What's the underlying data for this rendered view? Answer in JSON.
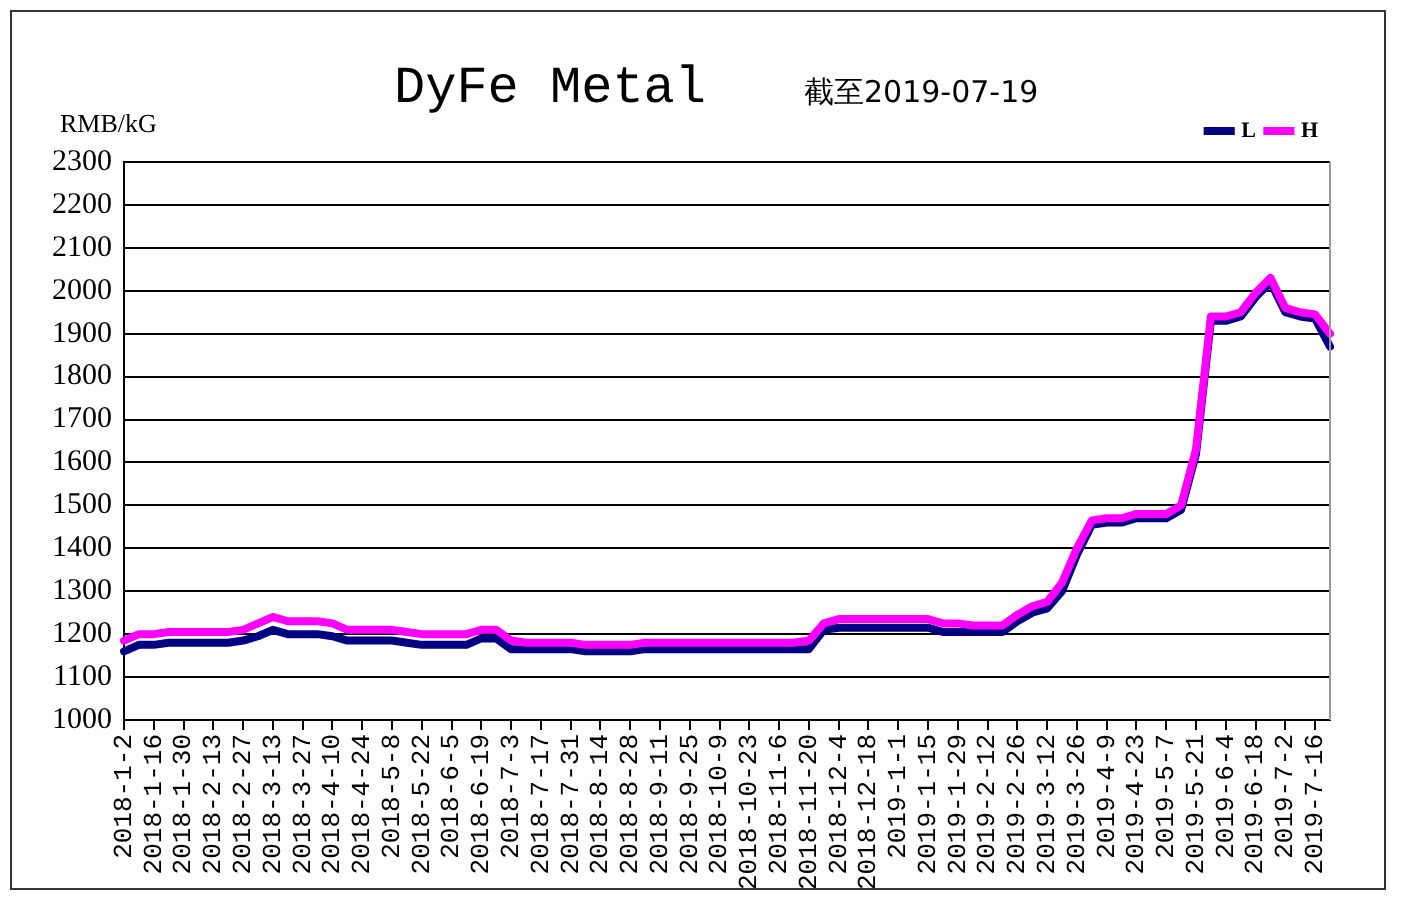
{
  "chart_data": {
    "type": "line",
    "title": "DyFe Metal",
    "subtitle": "截至2019-07-19",
    "ylabel": "RMB/kG",
    "categories": [
      "2018-1-2",
      null,
      "2018-1-16",
      null,
      "2018-1-30",
      null,
      "2018-2-13",
      null,
      "2018-2-27",
      null,
      "2018-3-13",
      null,
      "2018-3-27",
      null,
      "2018-4-10",
      null,
      "2018-4-24",
      null,
      "2018-5-8",
      null,
      "2018-5-22",
      null,
      "2018-6-5",
      null,
      "2018-6-19",
      null,
      "2018-7-3",
      null,
      "2018-7-17",
      null,
      "2018-7-31",
      null,
      "2018-8-14",
      null,
      "2018-8-28",
      null,
      "2018-9-11",
      null,
      "2018-9-25",
      null,
      "2018-10-9",
      null,
      "2018-10-23",
      null,
      "2018-11-6",
      null,
      "2018-11-20",
      null,
      "2018-12-4",
      null,
      "2018-12-18",
      null,
      "2019-1-1",
      null,
      "2019-1-15",
      null,
      "2019-1-29",
      null,
      "2019-2-12",
      null,
      "2019-2-26",
      null,
      "2019-3-12",
      null,
      "2019-3-26",
      null,
      "2019-4-9",
      null,
      "2019-4-23",
      null,
      "2019-5-7",
      null,
      "2019-5-21",
      null,
      "2019-6-4",
      null,
      "2019-6-18",
      null,
      "2019-7-2",
      null,
      "2019-7-16",
      null
    ],
    "series": [
      {
        "name": "L",
        "color": "#000080",
        "values": [
          1160,
          1175,
          1175,
          1180,
          1180,
          1180,
          1180,
          1180,
          1185,
          1195,
          1210,
          1200,
          1200,
          1200,
          1195,
          1185,
          1185,
          1185,
          1185,
          1180,
          1175,
          1175,
          1175,
          1175,
          1190,
          1190,
          1165,
          1165,
          1165,
          1165,
          1165,
          1160,
          1160,
          1160,
          1160,
          1165,
          1165,
          1165,
          1165,
          1165,
          1165,
          1165,
          1165,
          1165,
          1165,
          1165,
          1165,
          1210,
          1215,
          1215,
          1215,
          1215,
          1215,
          1215,
          1215,
          1205,
          1205,
          1205,
          1205,
          1205,
          1230,
          1250,
          1260,
          1300,
          1385,
          1455,
          1460,
          1460,
          1470,
          1470,
          1470,
          1490,
          1620,
          1930,
          1930,
          1940,
          1985,
          2020,
          1950,
          1940,
          1935,
          1870
        ]
      },
      {
        "name": "H",
        "color": "#ff00ff",
        "values": [
          1185,
          1200,
          1200,
          1205,
          1205,
          1205,
          1205,
          1205,
          1210,
          1225,
          1240,
          1230,
          1230,
          1230,
          1225,
          1210,
          1210,
          1210,
          1210,
          1205,
          1200,
          1200,
          1200,
          1200,
          1210,
          1210,
          1185,
          1180,
          1180,
          1180,
          1180,
          1175,
          1175,
          1175,
          1175,
          1180,
          1180,
          1180,
          1180,
          1180,
          1180,
          1180,
          1180,
          1180,
          1180,
          1180,
          1185,
          1225,
          1235,
          1235,
          1235,
          1235,
          1235,
          1235,
          1235,
          1225,
          1225,
          1220,
          1220,
          1220,
          1245,
          1265,
          1275,
          1320,
          1400,
          1465,
          1470,
          1470,
          1480,
          1480,
          1480,
          1500,
          1630,
          1940,
          1940,
          1950,
          1995,
          2030,
          1960,
          1950,
          1945,
          1900
        ]
      }
    ],
    "ylim": [
      1000,
      2300
    ],
    "yticks": [
      1000,
      1100,
      1200,
      1300,
      1400,
      1500,
      1600,
      1700,
      1800,
      1900,
      2000,
      2100,
      2200,
      2300
    ],
    "grid": "y",
    "legend": "top right",
    "marker": "none",
    "line_style": "solid"
  }
}
